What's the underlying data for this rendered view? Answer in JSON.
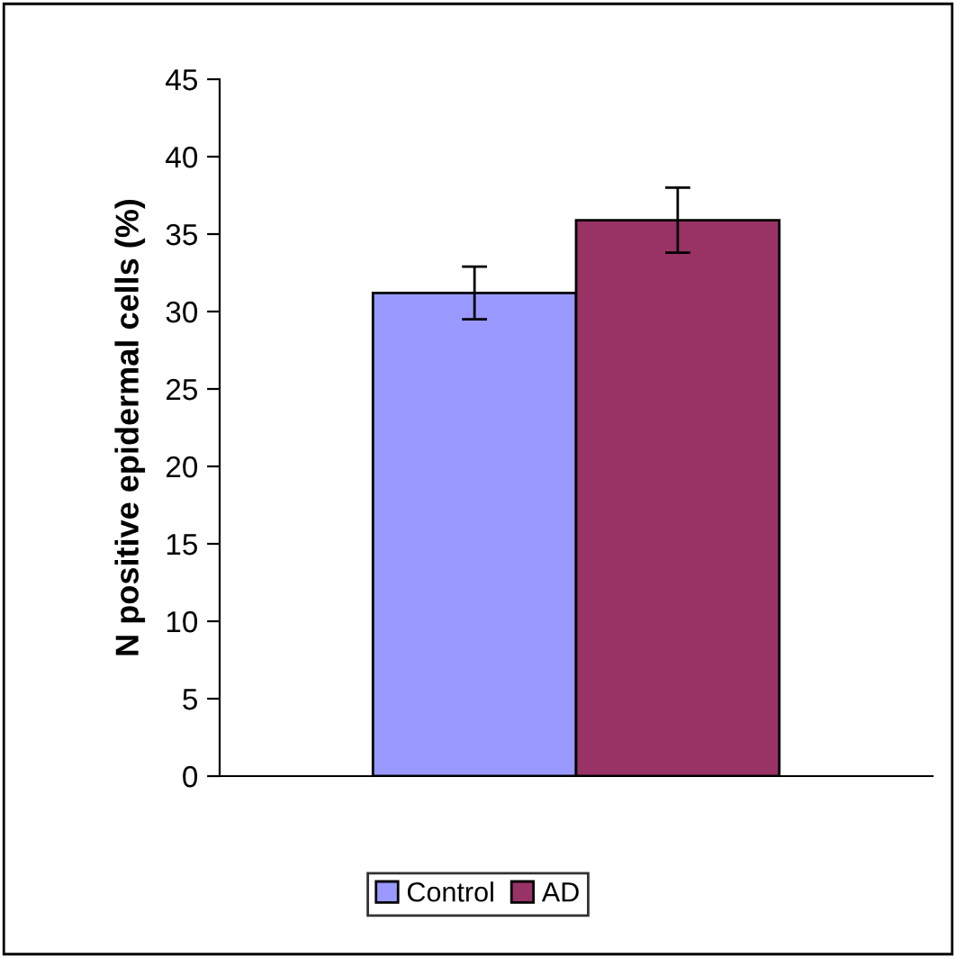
{
  "chart_data": {
    "type": "bar",
    "ylabel": "N positive epidermal cells (%)",
    "categories": [
      null
    ],
    "series": [
      {
        "name": "Control",
        "color": "#9999ff",
        "values": [
          31.2
        ],
        "errors": [
          1.7
        ]
      },
      {
        "name": "AD",
        "color": "#993366",
        "values": [
          35.9
        ],
        "errors": [
          2.1
        ]
      }
    ],
    "ylim": [
      0,
      45
    ],
    "yticks": [
      0,
      5,
      10,
      15,
      20,
      25,
      30,
      35,
      40,
      45
    ],
    "grid": false,
    "legend": "bottom"
  }
}
